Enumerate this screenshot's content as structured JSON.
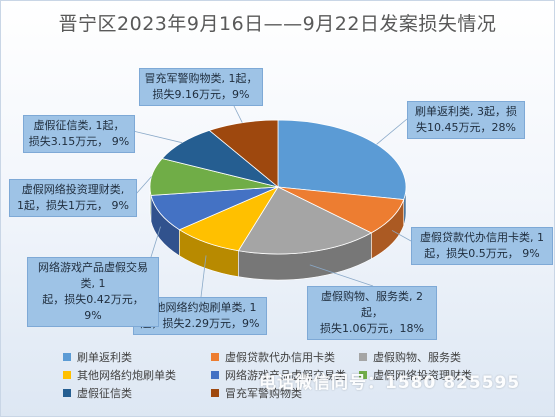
{
  "title": "晋宁区2023年9月16日——9月22日发案损失情况",
  "colors": {
    "blue": "#5b9bd5",
    "orange": "#ed7d31",
    "gray": "#a5a5a5",
    "gold": "#ffc000",
    "darkblue": "#4472c4",
    "green": "#70ad47",
    "navy": "#255e91",
    "rust": "#9e480e"
  },
  "chart_data": {
    "type": "pie",
    "title": "晋宁区2023年9月16日——9月22日发案损失情况",
    "unit": "万元",
    "slices": [
      {
        "name": "刷单返利类",
        "cases": 3,
        "loss": 10.45,
        "percent": 28,
        "label": "刷单返利类, 3起，损失10.45万元，28%",
        "color": "#5b9bd5"
      },
      {
        "name": "虚假贷款代办信用卡类",
        "cases": 1,
        "loss": 0.5,
        "percent": 9,
        "label": "虚假贷款代办信用卡类, 1起，损失0.5万元， 9%",
        "color": "#ed7d31"
      },
      {
        "name": "虚假购物、服务类",
        "cases": 2,
        "loss": 1.06,
        "percent": 18,
        "label": "虚假购物、服务类, 2起，损失1.06万元，18%",
        "color": "#a5a5a5"
      },
      {
        "name": "其他网络约炮刷单类",
        "cases": 1,
        "loss": 2.29,
        "percent": 9,
        "label": "其他网络约炮刷单类, 1起，损失2.29万元，9%",
        "color": "#ffc000"
      },
      {
        "name": "网络游戏产品虚假交易类",
        "cases": 1,
        "loss": 0.42,
        "percent": 9,
        "label": "网络游戏产品虚假交易类, 1起，损失0.42万元，9%",
        "color": "#4472c4"
      },
      {
        "name": "虚假网络投资理财类",
        "cases": 1,
        "loss": 1,
        "percent": 9,
        "label": "虚假网络投资理财类, 1起，损失1万元，9%",
        "color": "#70ad47"
      },
      {
        "name": "虚假征信类",
        "cases": 1,
        "loss": 3.15,
        "percent": 9,
        "label": "虚假征信类, 1起，损失3.15万元， 9%",
        "color": "#255e91"
      },
      {
        "name": "冒充军警购物类",
        "cases": 1,
        "loss": 9.16,
        "percent": 9,
        "label": "冒充军警购物类, 1起，损失9.16万元，9%",
        "color": "#9e480e"
      }
    ],
    "legend": [
      "刷单返利类",
      "虚假贷款代办信用卡类",
      "虚假购物、服务类",
      "其他网络约炮刷单类",
      "网络游戏产品虚假交易类",
      "虚假网络投资理财类",
      "虚假征信类",
      "冒充军警购物类"
    ],
    "legend_position": "bottom"
  },
  "callouts": {
    "c0": [
      "刷单返利类, 3起，损",
      "失10.45万元，28%"
    ],
    "c1": [
      "虚假贷款代办信用卡类, 1",
      "起，损失0.5万元， 9%"
    ],
    "c2": [
      "虚假购物、服务类, 2起，",
      "损失1.06万元，18%"
    ],
    "c3": [
      "其他网络约炮刷单类, 1",
      "起，损失2.29万元，9%"
    ],
    "c4": [
      "网络游戏产品虚假交易类, 1",
      "起，损失0.42万元， 9%"
    ],
    "c5": [
      "虚假网络投资理财类,",
      "1起，损失1万元， 9%"
    ],
    "c6": [
      "虚假征信类, 1起，",
      "损失3.15万元， 9%"
    ],
    "c7": [
      "冒充军警购物类, 1起，",
      "损失9.16万元，9%"
    ]
  },
  "watermark": "电话微信同号：1580 825595"
}
